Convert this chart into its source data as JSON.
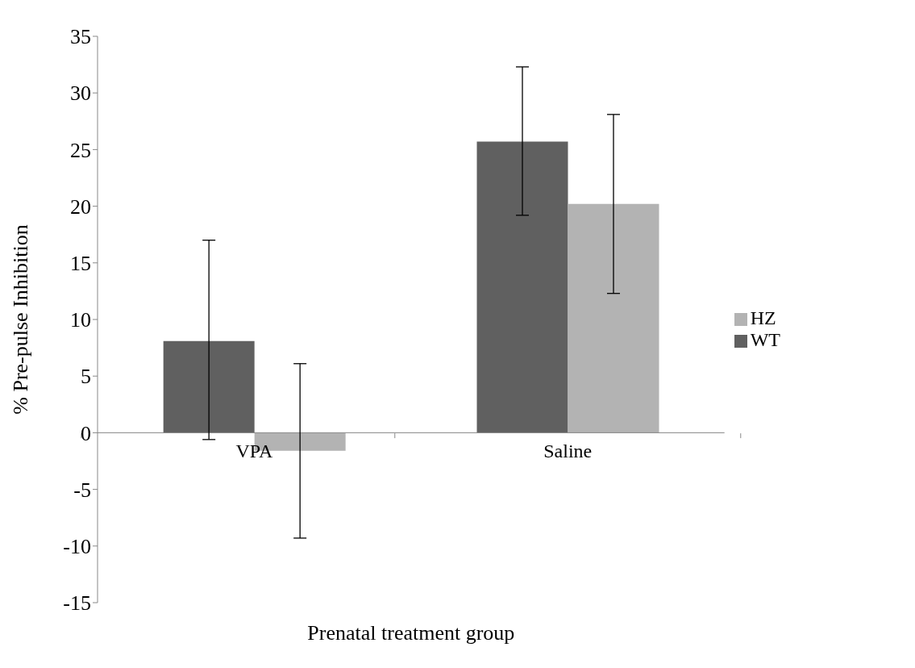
{
  "chart_data": {
    "type": "bar",
    "xlabel": "Prenatal treatment group",
    "ylabel": "% Pre-pulse Inhibition",
    "categories": [
      "VPA",
      "Saline"
    ],
    "series": [
      {
        "name": "WT",
        "color": "#606060",
        "values": [
          8.1,
          25.7
        ],
        "errors": [
          [
            -0.6,
            17.0
          ],
          [
            19.2,
            32.3
          ]
        ]
      },
      {
        "name": "HZ",
        "color": "#b3b3b3",
        "values": [
          -1.6,
          20.2
        ],
        "errors": [
          [
            -9.3,
            6.1
          ],
          [
            12.3,
            28.1
          ]
        ]
      }
    ],
    "ylim": [
      -15,
      35
    ],
    "yticks": [
      -15,
      -10,
      -5,
      0,
      5,
      10,
      15,
      20,
      25,
      30,
      35
    ],
    "grid": false,
    "legend": "right"
  }
}
